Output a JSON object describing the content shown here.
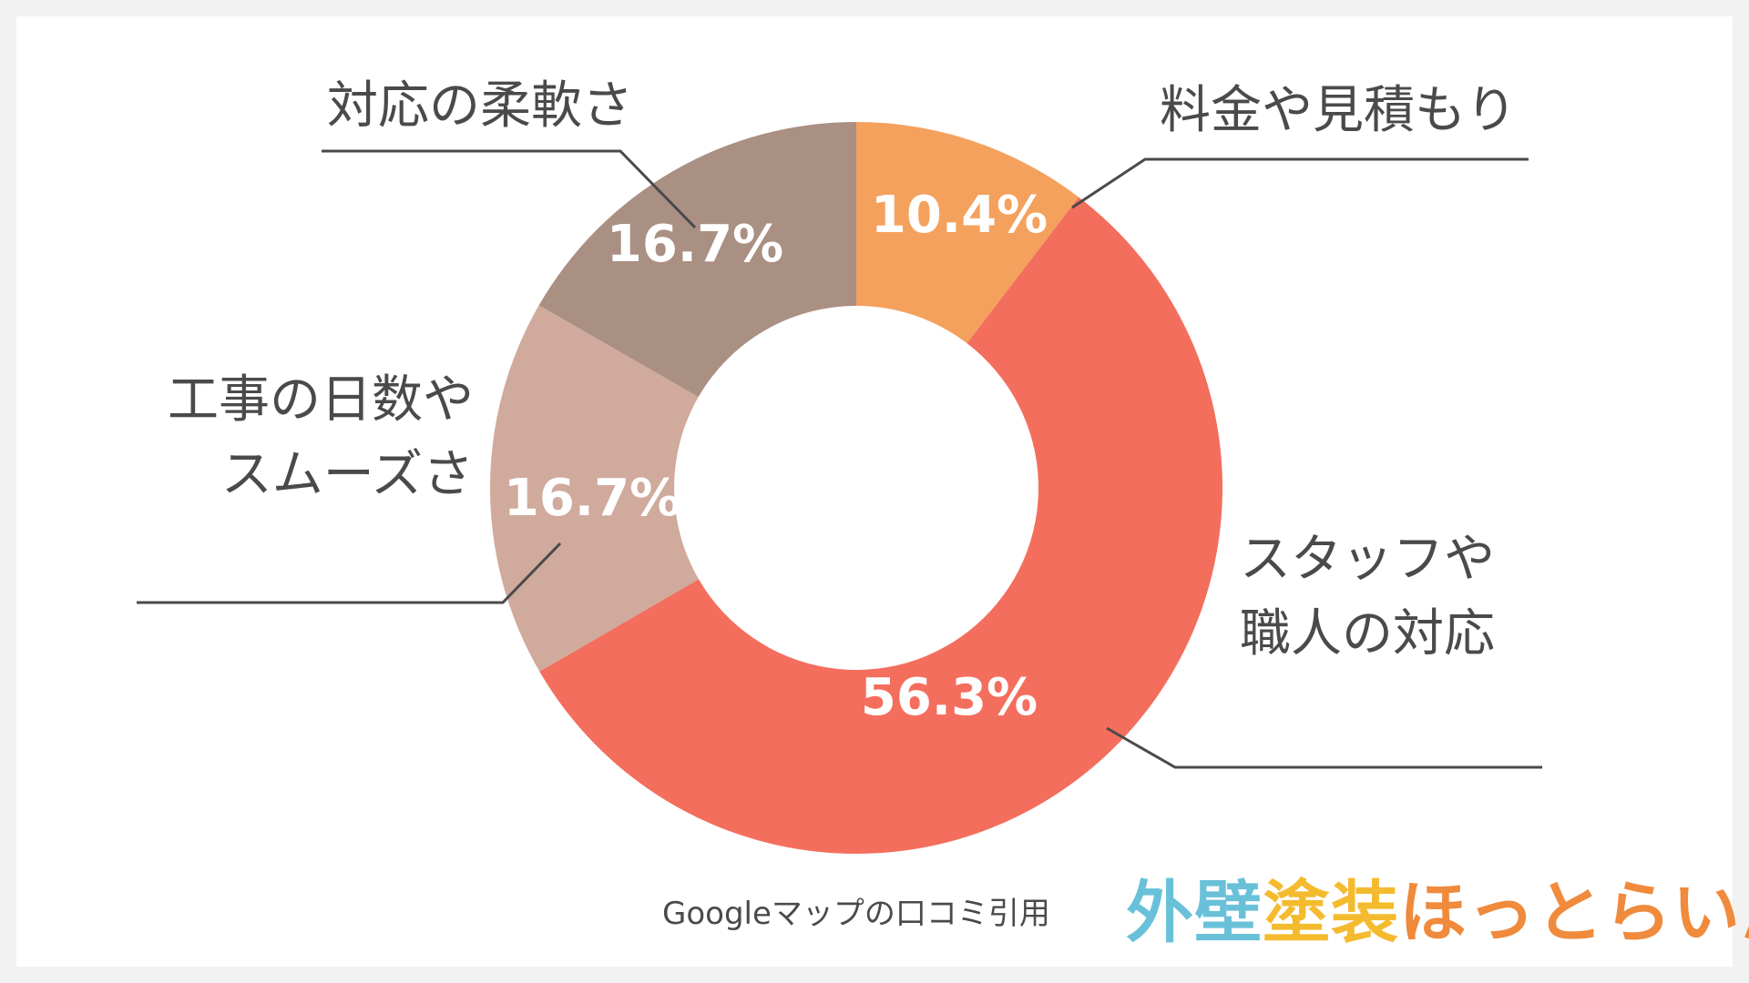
{
  "chart_data": {
    "type": "pie",
    "donut": true,
    "categories": [
      "料金や見積もり",
      "スタッフや職人の対応",
      "工事の日数やスムーズさ",
      "対応の柔軟さ"
    ],
    "label_lines": [
      [
        "料金や見積もり"
      ],
      [
        "スタッフや",
        "職人の対応"
      ],
      [
        "工事の日数や",
        "スムーズさ"
      ],
      [
        "対応の柔軟さ"
      ]
    ],
    "values": [
      10.4,
      56.3,
      16.7,
      16.7
    ],
    "value_labels": [
      "10.4%",
      "56.3%",
      "16.7%",
      "16.7%"
    ],
    "colors": [
      "#f4a15d",
      "#f46e5d",
      "#d0aa9c",
      "#aa8f83"
    ],
    "title": "",
    "legend": "none"
  },
  "source_note": "Googleマップの口コミ引用",
  "logo": {
    "part1": "外壁",
    "part2": "塗装",
    "part3": "ほっとらいん"
  }
}
